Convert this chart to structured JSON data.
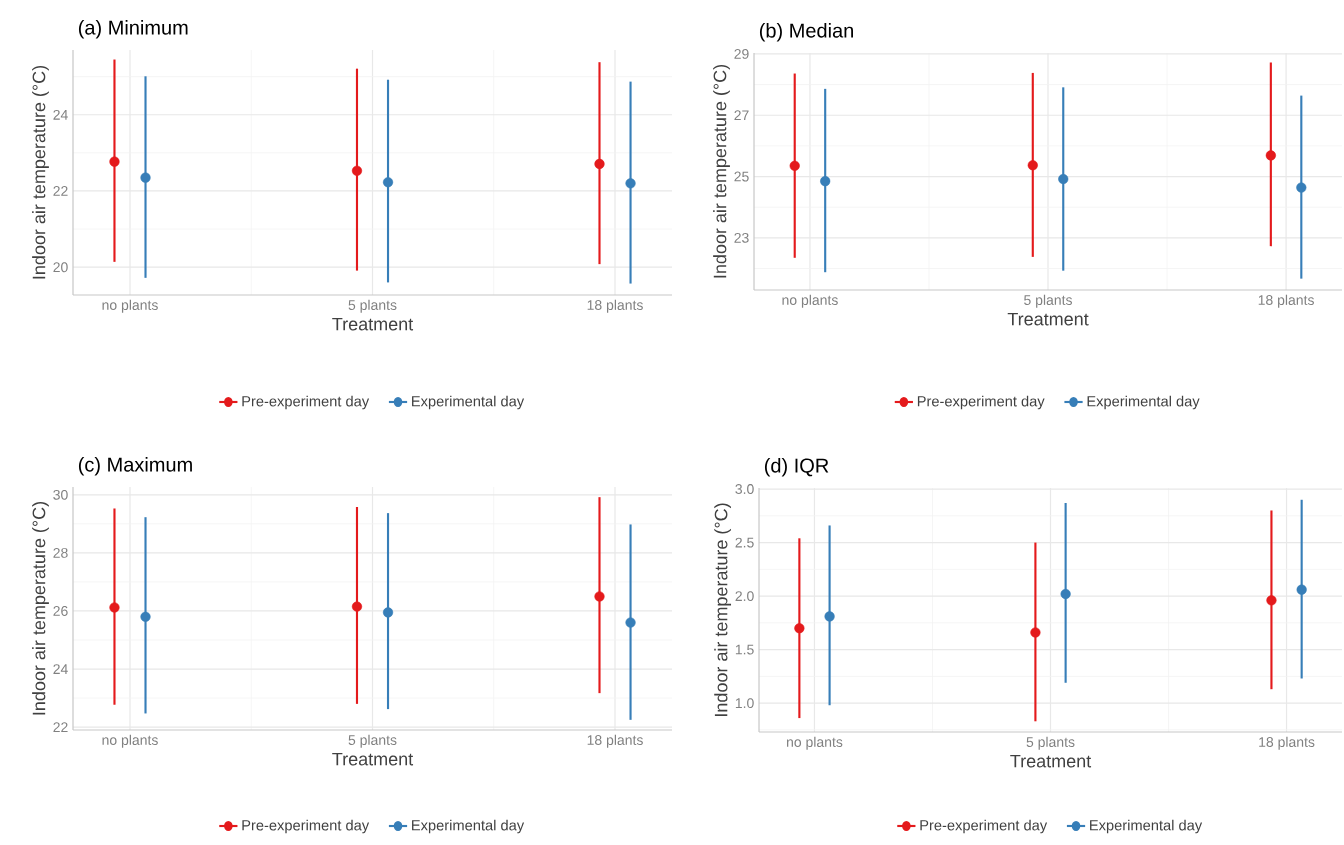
{
  "chart_data": [
    {
      "type": "scatter",
      "title": "(a) Minimum",
      "xlabel": "Treatment",
      "ylabel": "Indoor air temperature (°C)",
      "categories": [
        "no plants",
        "5 plants",
        "18 plants"
      ],
      "ylim": [
        19.27,
        25.7
      ],
      "yticks": [
        20,
        22,
        24
      ],
      "grid": true,
      "legend": "bottom",
      "marker": "circle",
      "series": [
        {
          "name": "Pre-experiment day",
          "color": "#e41a1c",
          "values": [
            22.77,
            22.53,
            22.71
          ],
          "errors": [
            [
              20.14,
              25.45
            ],
            [
              19.91,
              25.21
            ],
            [
              20.08,
              25.38
            ]
          ]
        },
        {
          "name": "Experimental day",
          "color": "#377eb8",
          "values": [
            22.35,
            22.23,
            22.2
          ],
          "errors": [
            [
              19.72,
              25.01
            ],
            [
              19.6,
              24.92
            ],
            [
              19.57,
              24.87
            ]
          ]
        }
      ]
    },
    {
      "type": "scatter",
      "title": "(b) Median",
      "xlabel": "Treatment",
      "ylabel": "Indoor air temperature (°C)",
      "categories": [
        "no plants",
        "5 plants",
        "18 plants"
      ],
      "ylim": [
        21.3,
        29.03
      ],
      "yticks": [
        23,
        25,
        27,
        29
      ],
      "grid": true,
      "legend": "bottom",
      "marker": "circle",
      "series": [
        {
          "name": "Pre-experiment day",
          "color": "#e41a1c",
          "values": [
            25.35,
            25.37,
            25.69
          ],
          "errors": [
            [
              22.35,
              28.36
            ],
            [
              22.38,
              28.38
            ],
            [
              22.73,
              28.72
            ]
          ]
        },
        {
          "name": "Experimental day",
          "color": "#377eb8",
          "values": [
            24.85,
            24.92,
            24.64
          ],
          "errors": [
            [
              21.88,
              27.86
            ],
            [
              21.93,
              27.91
            ],
            [
              21.67,
              27.64
            ]
          ]
        }
      ]
    },
    {
      "type": "scatter",
      "title": "(c) Maximum",
      "xlabel": "Treatment",
      "ylabel": "Indoor air temperature (°C)",
      "categories": [
        "no plants",
        "5 plants",
        "18 plants"
      ],
      "ylim": [
        21.9,
        30.27
      ],
      "yticks": [
        22,
        24,
        26,
        28,
        30
      ],
      "grid": true,
      "legend": "bottom",
      "marker": "circle",
      "series": [
        {
          "name": "Pre-experiment day",
          "color": "#e41a1c",
          "values": [
            26.12,
            26.15,
            26.5
          ],
          "errors": [
            [
              22.77,
              29.53
            ],
            [
              22.8,
              29.58
            ],
            [
              23.17,
              29.92
            ]
          ]
        },
        {
          "name": "Experimental day",
          "color": "#377eb8",
          "values": [
            25.8,
            25.95,
            25.6
          ],
          "errors": [
            [
              22.47,
              29.23
            ],
            [
              22.62,
              29.37
            ],
            [
              22.25,
              28.98
            ]
          ]
        }
      ]
    },
    {
      "type": "scatter",
      "title": "(d) IQR",
      "xlabel": "Treatment",
      "ylabel": "Indoor air temperature (°C)",
      "categories": [
        "no plants",
        "5 plants",
        "18 plants"
      ],
      "ylim": [
        0.73,
        3.01
      ],
      "yticks": [
        {
          "value": 1,
          "label": "1.0"
        },
        {
          "value": 1.5,
          "label": "1.5"
        },
        {
          "value": 2,
          "label": "2.0"
        },
        {
          "value": 2.5,
          "label": "2.5"
        },
        {
          "value": 3,
          "label": "3.0"
        }
      ],
      "grid": true,
      "legend": "bottom",
      "marker": "circle",
      "series": [
        {
          "name": "Pre-experiment day",
          "color": "#e41a1c",
          "values": [
            1.7,
            1.66,
            1.96
          ],
          "errors": [
            [
              0.86,
              2.54
            ],
            [
              0.83,
              2.5
            ],
            [
              1.13,
              2.8
            ]
          ]
        },
        {
          "name": "Experimental day",
          "color": "#377eb8",
          "values": [
            1.81,
            2.02,
            2.06
          ],
          "errors": [
            [
              0.98,
              2.66
            ],
            [
              1.19,
              2.87
            ],
            [
              1.23,
              2.9
            ]
          ]
        }
      ]
    }
  ]
}
